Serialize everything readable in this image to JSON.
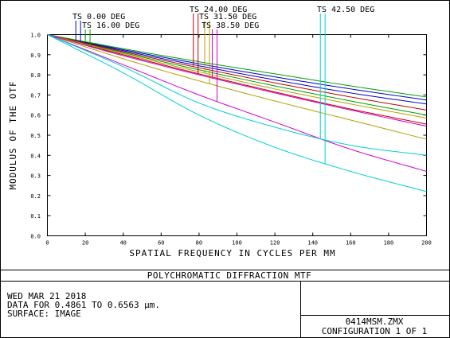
{
  "chart_data": {
    "type": "line",
    "xlabel": "SPATIAL FREQUENCY IN CYCLES PER MM",
    "ylabel": "MODULUS OF THE OTF",
    "xlim": [
      0,
      200
    ],
    "ylim": [
      0,
      1.0
    ],
    "x_ticks": [
      "0",
      "20",
      "40",
      "60",
      "80",
      "100",
      "120",
      "140",
      "160",
      "180",
      "200"
    ],
    "y_ticks": [
      "0.0",
      "0.1",
      "0.2",
      "0.3",
      "0.4",
      "0.5",
      "0.6",
      "0.7",
      "0.8",
      "0.9",
      "1.0"
    ],
    "grid": false,
    "field_labels": [
      {
        "text": "TS 0.00 DEG",
        "color": "#0000c0",
        "x_marker": 15
      },
      {
        "text": "TS 16.00 DEG",
        "color": "#00a000",
        "x_marker": 20
      },
      {
        "text": "TS 24.00 DEG",
        "color": "#c00000",
        "x_marker": 77
      },
      {
        "text": "TS 31.50 DEG",
        "color": "#b0a000",
        "x_marker": 83
      },
      {
        "text": "TS 38.50 DEG",
        "color": "#d000d0",
        "x_marker": 87
      },
      {
        "text": "TS 42.50 DEG",
        "color": "#00d0d0",
        "x_marker": 144
      }
    ],
    "series": [
      {
        "color": "#0000c0",
        "x": [
          0,
          40,
          80,
          120,
          160,
          200
        ],
        "values": [
          1.0,
          0.92,
          0.845,
          0.775,
          0.71,
          0.655
        ]
      },
      {
        "color": "#0000c0",
        "x": [
          0,
          40,
          80,
          120,
          160,
          200
        ],
        "values": [
          1.0,
          0.925,
          0.855,
          0.79,
          0.73,
          0.675
        ]
      },
      {
        "color": "#00a000",
        "x": [
          0,
          40,
          80,
          120,
          160,
          200
        ],
        "values": [
          1.0,
          0.93,
          0.865,
          0.805,
          0.745,
          0.69
        ]
      },
      {
        "color": "#00a000",
        "x": [
          0,
          40,
          80,
          120,
          160,
          200
        ],
        "values": [
          1.0,
          0.91,
          0.825,
          0.745,
          0.67,
          0.6
        ]
      },
      {
        "color": "#c00000",
        "x": [
          0,
          40,
          80,
          120,
          160,
          200
        ],
        "values": [
          1.0,
          0.915,
          0.835,
          0.76,
          0.69,
          0.625
        ]
      },
      {
        "color": "#c00000",
        "x": [
          0,
          40,
          80,
          120,
          160,
          200
        ],
        "values": [
          1.0,
          0.9,
          0.805,
          0.715,
          0.63,
          0.555
        ]
      },
      {
        "color": "#b0a000",
        "x": [
          0,
          40,
          80,
          120,
          160,
          200
        ],
        "values": [
          1.0,
          0.905,
          0.815,
          0.73,
          0.655,
          0.585
        ]
      },
      {
        "color": "#b0a000",
        "x": [
          0,
          40,
          80,
          120,
          160,
          200
        ],
        "values": [
          1.0,
          0.88,
          0.77,
          0.67,
          0.575,
          0.48
        ]
      },
      {
        "color": "#d000d0",
        "x": [
          0,
          40,
          80,
          120,
          160,
          200
        ],
        "values": [
          1.0,
          0.895,
          0.8,
          0.71,
          0.625,
          0.545
        ]
      },
      {
        "color": "#d000d0",
        "x": [
          0,
          40,
          80,
          120,
          160,
          200
        ],
        "values": [
          1.0,
          0.85,
          0.7,
          0.565,
          0.43,
          0.32
        ]
      },
      {
        "color": "#00d0d0",
        "x": [
          0,
          40,
          80,
          120,
          160,
          200
        ],
        "values": [
          1.0,
          0.84,
          0.66,
          0.54,
          0.45,
          0.4
        ]
      },
      {
        "color": "#00d0d0",
        "x": [
          0,
          40,
          80,
          120,
          160,
          200
        ],
        "values": [
          1.0,
          0.81,
          0.6,
          0.44,
          0.32,
          0.22
        ]
      }
    ]
  },
  "footer": {
    "title": "POLYCHROMATIC DIFFRACTION MTF",
    "date": "WED MAR 21 2018",
    "data_line": "DATA FOR 0.4861 TO 0.6563 µm.",
    "surface": "SURFACE: IMAGE",
    "file": "0414MSM.ZMX",
    "config": "CONFIGURATION 1 OF 1"
  }
}
